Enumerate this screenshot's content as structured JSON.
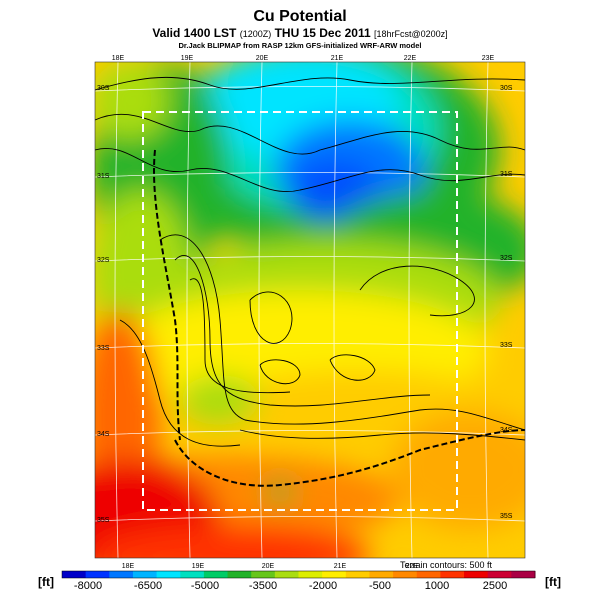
{
  "title": "Cu Potential",
  "subtitle_main": "Valid 1400 LST",
  "subtitle_paren": "(1200Z)",
  "subtitle_date": "THU 15 Dec 2011",
  "subtitle_bracket": "[18hrFcst@0200z]",
  "credit": "Dr.Jack BLIPMAP from RASP 12km GFS-initialized WRF-ARW model",
  "terrain_note": "Terrain contours: 500 ft",
  "unit_left": "[ft]",
  "unit_right": "[ft]",
  "lon_labels_top": [
    "18E",
    "19E",
    "20E",
    "21E",
    "22E",
    "23E"
  ],
  "lon_labels_bottom": [
    "18E",
    "19E",
    "20E",
    "21E",
    "22E"
  ],
  "lat_labels_left": [
    "30S",
    "31S",
    "32S",
    "33S",
    "34S",
    "35S"
  ],
  "lat_labels_right": [
    "30S",
    "31S",
    "32S",
    "33S",
    "34S",
    "35S"
  ],
  "colorbar": {
    "tick_labels": [
      "-8000",
      "-6500",
      "-5000",
      "-3500",
      "-2000",
      "-500",
      "1000",
      "2500"
    ],
    "colors": [
      "#0000c8",
      "#0033ff",
      "#0077ff",
      "#00b4ff",
      "#00e4ff",
      "#00e0c0",
      "#00cc66",
      "#22b22a",
      "#66c61a",
      "#aadd11",
      "#ddee00",
      "#ffee00",
      "#ffcc00",
      "#ffaa00",
      "#ff8800",
      "#ff6600",
      "#ff3300",
      "#ee0000",
      "#cc0033",
      "#aa0044"
    ]
  },
  "colors": {
    "dashed_box": "#ffffff",
    "grid": "#ffffff",
    "contour": "#000000"
  }
}
